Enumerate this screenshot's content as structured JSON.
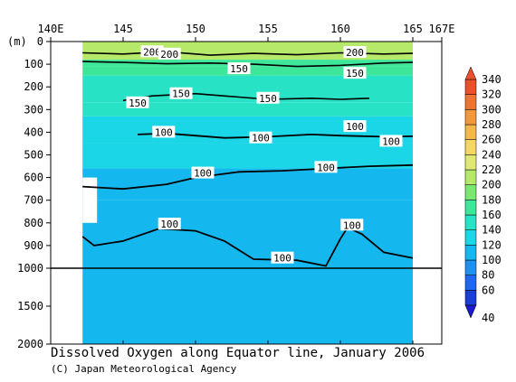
{
  "chart_data": {
    "type": "heatmap",
    "title": "Dissolved Oxygen along Equator line, January 2006",
    "credit": "(C) Japan Meteorological Agency",
    "x": {
      "ticks": [
        140,
        145,
        150,
        155,
        160,
        165,
        167
      ],
      "tick_labels": [
        "140E",
        "145",
        "150",
        "155",
        "160",
        "165",
        "167E"
      ],
      "range": [
        140,
        167
      ],
      "data_range": [
        142.2,
        165
      ]
    },
    "y": {
      "unit_label": "(m)",
      "upper_ticks": [
        0,
        100,
        200,
        300,
        400,
        500,
        600,
        700,
        800,
        900,
        1000
      ],
      "lower_ticks": [
        1000,
        1500,
        2000
      ],
      "tick_labels": [
        "0",
        "100",
        "200",
        "300",
        "400",
        "500",
        "600",
        "700",
        "800",
        "900",
        "1000",
        "1500",
        "2000"
      ],
      "axis_break": 1000,
      "range": [
        0,
        2000
      ]
    },
    "colorbar": {
      "levels": [
        40,
        60,
        80,
        100,
        120,
        140,
        160,
        180,
        200,
        220,
        240,
        260,
        280,
        300,
        320,
        340
      ],
      "labels": [
        "40",
        "60",
        "80",
        "100",
        "120",
        "140",
        "160",
        "180",
        "200",
        "220",
        "240",
        "260",
        "280",
        "300",
        "320",
        "340"
      ],
      "colors": [
        "#1a3fd6",
        "#1f66f2",
        "#1e90f0",
        "#15b8ee",
        "#1ad6e6",
        "#27e2c4",
        "#3ee69a",
        "#7ae870",
        "#b6e96a",
        "#dfe874",
        "#f3d663",
        "#f4b84a",
        "#f2983c",
        "#ef7434",
        "#e9502b"
      ]
    },
    "fields": {
      "bands": [
        {
          "top": 0,
          "bottom": 80,
          "value": 200
        },
        {
          "top": 80,
          "bottom": 110,
          "value": 170
        },
        {
          "top": 110,
          "bottom": 150,
          "value": 160
        },
        {
          "top": 150,
          "bottom": 270,
          "value": 150
        },
        {
          "top": 270,
          "bottom": 330,
          "value": 140
        },
        {
          "top": 330,
          "bottom": 450,
          "value": 130
        },
        {
          "top": 450,
          "bottom": 560,
          "value": 125
        },
        {
          "top": 560,
          "bottom": 700,
          "value": 115
        },
        {
          "top": 700,
          "bottom": 1000,
          "value": 105
        },
        {
          "top": 1000,
          "bottom": 2000,
          "value": 100
        }
      ],
      "missing": {
        "x": [
          142.2,
          143.2
        ],
        "depth": [
          600,
          800
        ]
      }
    },
    "contours": [
      {
        "level": 200,
        "points": [
          [
            142.2,
            50
          ],
          [
            145,
            55
          ],
          [
            148,
            45
          ],
          [
            151,
            60
          ],
          [
            154,
            52
          ],
          [
            157,
            58
          ],
          [
            160,
            50
          ],
          [
            163,
            55
          ],
          [
            165,
            52
          ]
        ]
      },
      {
        "level": 150,
        "points": [
          [
            142.2,
            88
          ],
          [
            145,
            92
          ],
          [
            148,
            98
          ],
          [
            151,
            95
          ],
          [
            154,
            100
          ],
          [
            157,
            110
          ],
          [
            160,
            105
          ],
          [
            163,
            95
          ],
          [
            165,
            92
          ]
        ]
      },
      {
        "level": 150,
        "points": [
          [
            145,
            260
          ],
          [
            147,
            240
          ],
          [
            150,
            230
          ],
          [
            153,
            245
          ],
          [
            155,
            255
          ],
          [
            158,
            250
          ],
          [
            160,
            255
          ],
          [
            162,
            250
          ]
        ]
      },
      {
        "level": 100,
        "points": [
          [
            146,
            410
          ],
          [
            148,
            405
          ],
          [
            150,
            415
          ],
          [
            152,
            425
          ],
          [
            155,
            420
          ],
          [
            158,
            410
          ],
          [
            160,
            415
          ],
          [
            163,
            420
          ],
          [
            165,
            418
          ]
        ]
      },
      {
        "level": 100,
        "points": [
          [
            142.2,
            640
          ],
          [
            145,
            650
          ],
          [
            148,
            630
          ],
          [
            150,
            600
          ],
          [
            153,
            575
          ],
          [
            156,
            570
          ],
          [
            159,
            560
          ],
          [
            162,
            550
          ],
          [
            165,
            545
          ]
        ]
      },
      {
        "level": 100,
        "points": [
          [
            142.2,
            860
          ],
          [
            143,
            900
          ],
          [
            145,
            880
          ],
          [
            147.5,
            825
          ],
          [
            150,
            835
          ],
          [
            152,
            880
          ],
          [
            154,
            960
          ],
          [
            157,
            965
          ],
          [
            159,
            990
          ],
          [
            160,
            870
          ],
          [
            160.5,
            820
          ],
          [
            161.5,
            850
          ],
          [
            163,
            930
          ],
          [
            165,
            955
          ]
        ]
      }
    ],
    "contour_labels": [
      {
        "text": "200",
        "x": 147,
        "depth": 45
      },
      {
        "text": "200",
        "x": 148.2,
        "depth": 55
      },
      {
        "text": "200",
        "x": 161,
        "depth": 48
      },
      {
        "text": "150",
        "x": 153,
        "depth": 120
      },
      {
        "text": "150",
        "x": 161,
        "depth": 140
      },
      {
        "text": "150",
        "x": 149,
        "depth": 230
      },
      {
        "text": "150",
        "x": 155,
        "depth": 250
      },
      {
        "text": "150",
        "x": 146,
        "depth": 270
      },
      {
        "text": "100",
        "x": 147.8,
        "depth": 400
      },
      {
        "text": "100",
        "x": 154.5,
        "depth": 425
      },
      {
        "text": "100",
        "x": 161,
        "depth": 375
      },
      {
        "text": "100",
        "x": 163.5,
        "depth": 440
      },
      {
        "text": "100",
        "x": 150.5,
        "depth": 580
      },
      {
        "text": "100",
        "x": 159,
        "depth": 555
      },
      {
        "text": "100",
        "x": 148.2,
        "depth": 805
      },
      {
        "text": "100",
        "x": 160.8,
        "depth": 810
      },
      {
        "text": "100",
        "x": 156,
        "depth": 955
      }
    ]
  }
}
